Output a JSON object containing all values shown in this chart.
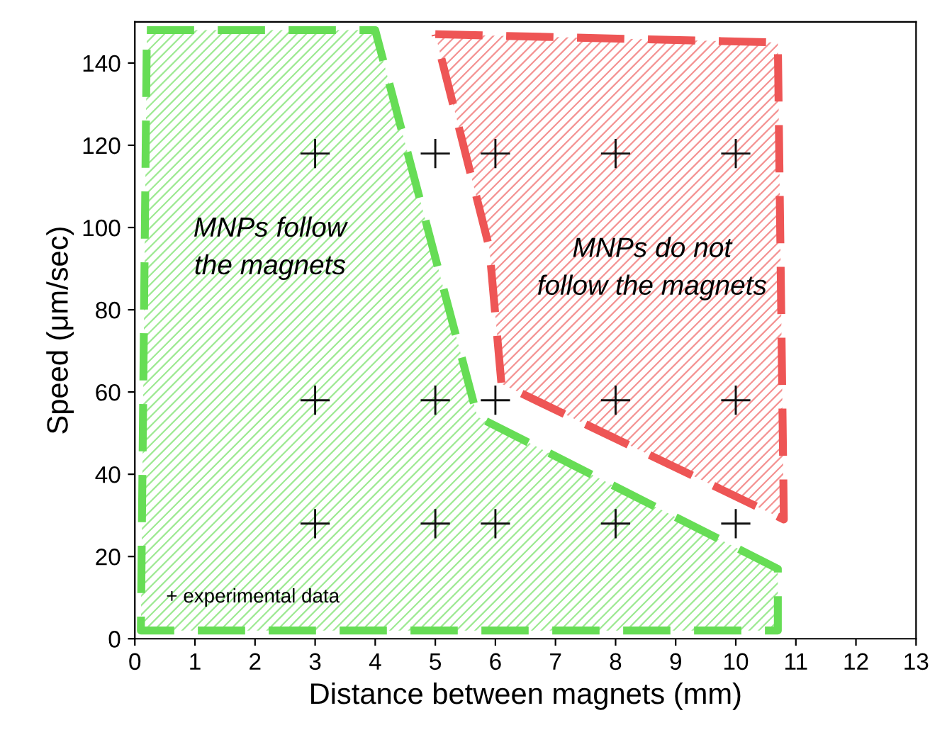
{
  "chart_data": {
    "type": "scatter",
    "xlabel": "Distance between magnets (mm)",
    "ylabel": "Speed (μm/sec)",
    "xlim": [
      0,
      13
    ],
    "ylim": [
      0,
      150
    ],
    "xticks": [
      0,
      1,
      2,
      3,
      4,
      5,
      6,
      7,
      8,
      9,
      10,
      11,
      12,
      13
    ],
    "yticks": [
      0,
      20,
      40,
      60,
      80,
      100,
      120,
      140
    ],
    "grid": false,
    "legend": false,
    "line_style": "dashed",
    "series": [
      {
        "type": "area",
        "color": "#66dd55",
        "x": [
          0.2,
          4.0,
          5.7,
          10.7,
          10.7,
          0.1,
          0.2
        ],
        "values": [
          148,
          148,
          54,
          17,
          2,
          2,
          148
        ]
      },
      {
        "type": "area",
        "color": "#ee5555",
        "x": [
          5.0,
          10.7,
          10.8,
          6.1,
          5.9,
          5.0
        ],
        "values": [
          147,
          145,
          29,
          62,
          95,
          147
        ]
      },
      {
        "marker": "cross",
        "color": "#111111",
        "x": [
          3,
          5,
          6,
          8,
          10,
          3,
          5,
          6,
          8,
          10,
          3,
          5,
          6,
          8,
          10
        ],
        "values": [
          118,
          118,
          118,
          118,
          118,
          58,
          58,
          58,
          58,
          58,
          28,
          28,
          28,
          28,
          28
        ]
      }
    ],
    "annotations": [
      "MNPs follow\nthe magnets",
      "MNPs do not\nfollow the magnets",
      "+ experimental data"
    ]
  }
}
